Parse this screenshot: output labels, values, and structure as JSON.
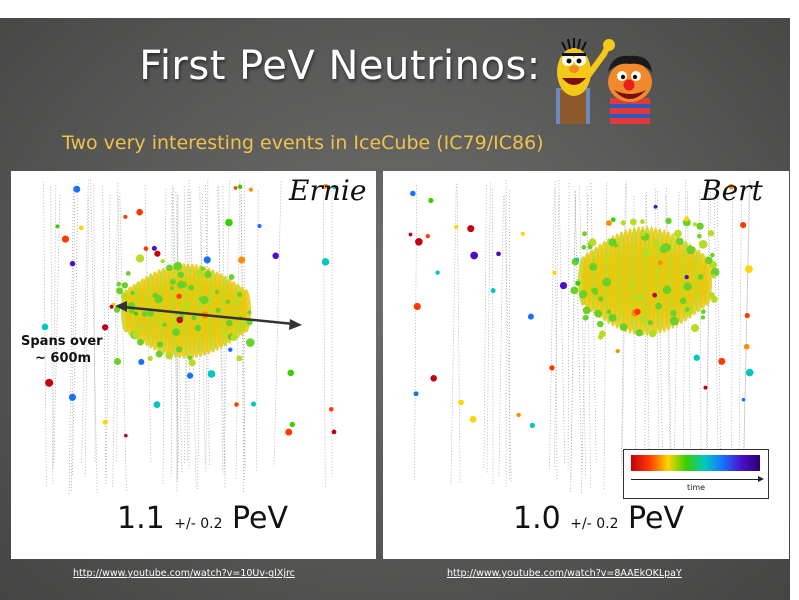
{
  "slide": {
    "title": "First PeV Neutrinos:",
    "subtitle": "Two very interesting events in IceCube (IC79/IC86)"
  },
  "events": [
    {
      "name": "Ernie",
      "energy_value": "1.1",
      "energy_uncertainty": "+/- 0.2",
      "energy_unit": "PeV",
      "annotation_line1": "Spans over",
      "annotation_line2": "~ 600m",
      "link": "http://www.youtube.com/watch?v=10Uv-glXjrc"
    },
    {
      "name": "Bert",
      "energy_value": "1.0",
      "energy_uncertainty": "+/- 0.2",
      "energy_unit": "PeV",
      "legend_label": "time",
      "link": "http://www.youtube.com/watch?v=8AAEkOKLpaY"
    }
  ],
  "colors": {
    "title": "#ffffff",
    "subtitle": "#f0c24a",
    "slide_bg": "#595958"
  }
}
